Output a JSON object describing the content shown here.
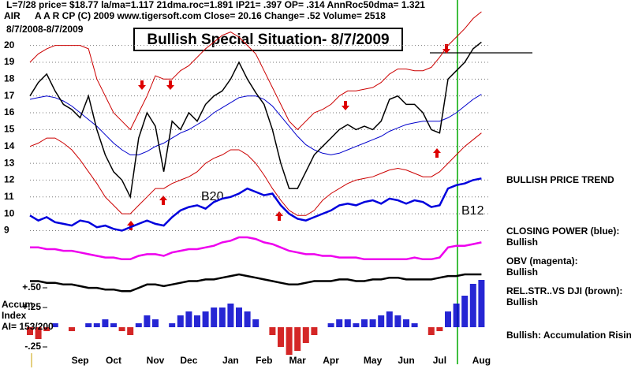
{
  "header": {
    "line1": "L=7/28  price= $18.77  la/ma=1.117 21dma.roc=1.891 IP21= .397 OP= .314 AnnRoc50dma= 1.321",
    "line2": "A A R CP    (C) 2009 www.tigersoft.com    Close=  20.16  Change= .52  Volume= 2518",
    "symbol": "AIR",
    "range": "8/7/2008-8/7/2009",
    "title": "Bullish Special Situation- 8/7/2009"
  },
  "chart_data": [
    {
      "type": "line",
      "categories": [
        null,
        null,
        null,
        null,
        null,
        null,
        "Sep",
        null,
        null,
        null,
        "Oct",
        null,
        null,
        null,
        null,
        "Nov",
        null,
        null,
        null,
        "Dec",
        null,
        null,
        null,
        null,
        "Jan",
        null,
        null,
        null,
        "Feb",
        null,
        null,
        null,
        "Mar",
        null,
        null,
        null,
        "Apr",
        null,
        null,
        null,
        null,
        "May",
        null,
        null,
        null,
        "Jun",
        null,
        null,
        null,
        "Jul",
        null,
        null,
        null,
        null,
        "Aug"
      ],
      "ylim": [
        4.9,
        22.7
      ],
      "yticks": [
        9,
        10,
        11,
        12,
        13,
        14,
        15,
        16,
        17,
        18,
        19,
        20
      ],
      "grid": true,
      "annotations": [
        "B20",
        "B12",
        "BULLISH PRICE TREND"
      ],
      "series": [
        {
          "color": "#cc0000",
          "width": 1,
          "values": [
            19.0,
            19.5,
            19.8,
            20.0,
            20.0,
            20.0,
            20.0,
            19.8,
            18.0,
            17.0,
            16.0,
            15.5,
            15.0,
            16.0,
            17.0,
            18.2,
            18.0,
            18.0,
            18.5,
            18.8,
            19.3,
            19.8,
            20.2,
            20.6,
            20.8,
            20.5,
            20.0,
            19.5,
            18.5,
            17.5,
            16.5,
            15.5,
            15.0,
            15.5,
            16.0,
            16.2,
            16.5,
            17.0,
            17.3,
            17.3,
            17.4,
            17.5,
            17.8,
            18.3,
            18.6,
            18.6,
            18.5,
            18.5,
            18.7,
            19.3,
            20.0,
            20.5,
            21.0,
            21.6,
            22.0
          ]
        },
        {
          "color": "#cc0000",
          "width": 1,
          "values": [
            14.0,
            14.2,
            14.5,
            14.5,
            14.2,
            13.8,
            13.2,
            12.5,
            11.8,
            11.0,
            10.5,
            10.0,
            10.0,
            10.5,
            11.0,
            11.5,
            11.5,
            11.8,
            12.0,
            12.2,
            12.5,
            13.0,
            13.3,
            13.5,
            13.8,
            13.8,
            13.5,
            13.0,
            12.3,
            11.5,
            10.8,
            10.2,
            9.9,
            9.9,
            10.2,
            10.8,
            11.2,
            11.5,
            11.8,
            12.0,
            12.1,
            12.2,
            12.4,
            12.6,
            12.7,
            12.6,
            12.4,
            12.2,
            12.2,
            12.5,
            13.0,
            13.5,
            14.0,
            14.4,
            14.8
          ]
        },
        {
          "color": "#0000cc",
          "width": 1,
          "values": [
            16.8,
            16.9,
            17.0,
            16.9,
            16.7,
            16.4,
            16.0,
            15.6,
            15.2,
            14.7,
            14.2,
            13.8,
            13.5,
            13.5,
            13.7,
            14.0,
            14.2,
            14.5,
            14.8,
            15.0,
            15.3,
            15.6,
            16.0,
            16.3,
            16.6,
            16.9,
            17.0,
            17.0,
            16.8,
            16.4,
            15.8,
            15.2,
            14.6,
            14.1,
            13.8,
            13.6,
            13.5,
            13.6,
            13.8,
            14.0,
            14.2,
            14.4,
            14.6,
            14.9,
            15.1,
            15.3,
            15.4,
            15.5,
            15.5,
            15.5,
            15.7,
            16.0,
            16.4,
            16.8,
            17.1
          ]
        },
        {
          "color": "#000000",
          "width": 1.5,
          "values": [
            17.0,
            17.8,
            18.3,
            17.3,
            16.5,
            16.2,
            15.7,
            17.0,
            15.0,
            13.5,
            12.5,
            12.0,
            11.0,
            14.5,
            16.0,
            15.2,
            12.5,
            15.5,
            15.0,
            16.0,
            15.5,
            16.5,
            17.0,
            17.3,
            18.0,
            19.0,
            18.0,
            17.2,
            16.5,
            15.0,
            13.0,
            11.5,
            11.5,
            12.5,
            13.5,
            14.0,
            14.5,
            15.0,
            15.3,
            15.0,
            15.2,
            15.0,
            15.5,
            16.8,
            17.0,
            16.5,
            16.5,
            16.0,
            15.0,
            14.8,
            18.0,
            18.5,
            19.0,
            19.8,
            20.2
          ]
        },
        {
          "name": "CLOSING POWER (blue):",
          "status": "Bullish",
          "color": "#0000dd",
          "width": 2.5,
          "values": [
            9.9,
            9.6,
            9.8,
            9.5,
            9.4,
            9.3,
            9.6,
            9.5,
            9.2,
            9.3,
            9.1,
            9.0,
            9.2,
            9.4,
            9.6,
            9.4,
            9.3,
            9.8,
            10.2,
            10.4,
            10.5,
            10.3,
            10.7,
            10.9,
            11.0,
            11.2,
            11.5,
            11.3,
            11.1,
            11.2,
            10.5,
            10.0,
            9.7,
            9.6,
            9.8,
            10.0,
            10.2,
            10.5,
            10.6,
            10.5,
            10.7,
            10.8,
            10.6,
            10.9,
            10.8,
            10.6,
            10.8,
            10.7,
            10.4,
            10.5,
            11.5,
            11.7,
            11.8,
            12.0,
            12.1
          ]
        },
        {
          "name": "OBV (magenta):",
          "status": "Bullish",
          "color": "#ee00ee",
          "width": 2.5,
          "values": [
            8.0,
            8.0,
            7.9,
            7.9,
            7.8,
            7.8,
            7.7,
            7.6,
            7.5,
            7.4,
            7.4,
            7.3,
            7.3,
            7.5,
            7.6,
            7.6,
            7.5,
            7.7,
            7.8,
            7.9,
            7.9,
            8.0,
            8.1,
            8.3,
            8.4,
            8.6,
            8.6,
            8.5,
            8.3,
            8.2,
            8.0,
            7.8,
            7.7,
            7.6,
            7.6,
            7.5,
            7.5,
            7.4,
            7.4,
            7.4,
            7.3,
            7.3,
            7.3,
            7.3,
            7.3,
            7.3,
            7.4,
            7.3,
            7.3,
            7.4,
            8.0,
            8.1,
            8.1,
            8.2,
            8.3
          ]
        },
        {
          "name": "REL.STR..VS DJI (brown):",
          "status": "Bullish",
          "color": "#000000",
          "width": 2.5,
          "values": [
            6.0,
            6.0,
            5.9,
            5.9,
            5.8,
            5.8,
            5.7,
            5.6,
            5.6,
            5.5,
            5.5,
            5.4,
            5.4,
            5.6,
            5.8,
            5.8,
            5.7,
            5.8,
            5.9,
            6.0,
            6.0,
            6.1,
            6.1,
            6.2,
            6.3,
            6.4,
            6.3,
            6.2,
            6.1,
            6.0,
            5.9,
            5.8,
            5.8,
            5.9,
            6.0,
            6.0,
            6.0,
            6.1,
            6.1,
            6.0,
            6.0,
            6.1,
            6.1,
            6.2,
            6.2,
            6.1,
            6.1,
            6.1,
            6.1,
            6.2,
            6.3,
            6.3,
            6.4,
            6.4,
            6.4
          ]
        }
      ]
    },
    {
      "type": "bar",
      "label_lines": [
        "Accum",
        "Index",
        "AI= 153/200"
      ],
      "status": "Bullish:  Accumulation Rising",
      "ylim": [
        -0.5,
        0.75
      ],
      "yticks": [
        {
          "value": 0.5,
          "label": "+.50"
        },
        {
          "value": 0.25,
          "label": "+.25"
        },
        {
          "value": -0.25,
          "label": "-.25"
        }
      ],
      "colors": {
        "positive": "#0000cc",
        "negative": "#cc0000"
      },
      "values": [
        -0.1,
        -0.15,
        -0.05,
        0.05,
        0.0,
        -0.05,
        0.0,
        0.05,
        0.05,
        0.1,
        0.05,
        -0.05,
        -0.1,
        0.05,
        0.15,
        0.1,
        0.0,
        0.05,
        0.15,
        0.2,
        0.15,
        0.2,
        0.25,
        0.25,
        0.3,
        0.25,
        0.2,
        0.1,
        0.0,
        -0.1,
        -0.25,
        -0.35,
        -0.3,
        -0.2,
        -0.1,
        0.0,
        0.05,
        0.1,
        0.1,
        0.05,
        0.1,
        0.1,
        0.15,
        0.2,
        0.15,
        0.1,
        0.05,
        0.0,
        -0.1,
        -0.05,
        0.2,
        0.3,
        0.4,
        0.55,
        0.6
      ]
    }
  ]
}
